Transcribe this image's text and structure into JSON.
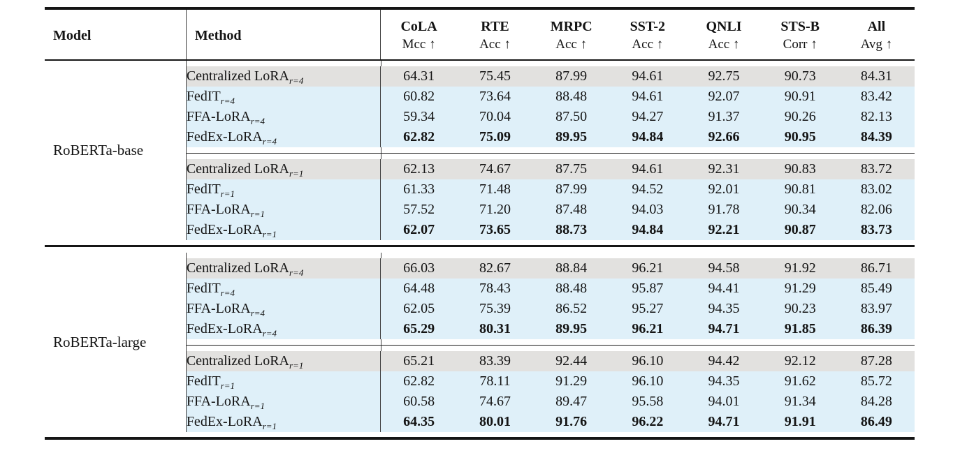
{
  "table": {
    "colors": {
      "gray_row": "#e2e1df",
      "blue_row": "#dff0f9",
      "rule": "#151515"
    },
    "columns": [
      {
        "name": "Model"
      },
      {
        "name": "Method"
      },
      {
        "name": "CoLA",
        "metric": "Mcc ↑"
      },
      {
        "name": "RTE",
        "metric": "Acc ↑"
      },
      {
        "name": "MRPC",
        "metric": "Acc ↑"
      },
      {
        "name": "SST-2",
        "metric": "Acc ↑"
      },
      {
        "name": "QNLI",
        "metric": "Acc ↑"
      },
      {
        "name": "STS-B",
        "metric": "Corr ↑"
      },
      {
        "name": "All",
        "metric": "Avg ↑"
      }
    ],
    "groups": [
      {
        "model": "RoBERTa-base",
        "blocks": [
          {
            "rows": [
              {
                "method": "Centralized LoRA",
                "sub": "r=4",
                "highlight": "gray",
                "bold": false,
                "values": [
                  "64.31",
                  "75.45",
                  "87.99",
                  "94.61",
                  "92.75",
                  "90.73",
                  "84.31"
                ]
              },
              {
                "method": "FedIT",
                "sub": "r=4",
                "highlight": "blue",
                "bold": false,
                "values": [
                  "60.82",
                  "73.64",
                  "88.48",
                  "94.61",
                  "92.07",
                  "90.91",
                  "83.42"
                ]
              },
              {
                "method": "FFA-LoRA",
                "sub": "r=4",
                "highlight": "blue",
                "bold": false,
                "values": [
                  "59.34",
                  "70.04",
                  "87.50",
                  "94.27",
                  "91.37",
                  "90.26",
                  "82.13"
                ]
              },
              {
                "method": "FedEx-LoRA",
                "sub": "r=4",
                "highlight": "blue",
                "bold": true,
                "values": [
                  "62.82",
                  "75.09",
                  "89.95",
                  "94.84",
                  "92.66",
                  "90.95",
                  "84.39"
                ]
              }
            ]
          },
          {
            "rows": [
              {
                "method": "Centralized LoRA",
                "sub": "r=1",
                "highlight": "gray",
                "bold": false,
                "values": [
                  "62.13",
                  "74.67",
                  "87.75",
                  "94.61",
                  "92.31",
                  "90.83",
                  "83.72"
                ]
              },
              {
                "method": "FedIT",
                "sub": "r=1",
                "highlight": "blue",
                "bold": false,
                "values": [
                  "61.33",
                  "71.48",
                  "87.99",
                  "94.52",
                  "92.01",
                  "90.81",
                  "83.02"
                ]
              },
              {
                "method": "FFA-LoRA",
                "sub": "r=1",
                "highlight": "blue",
                "bold": false,
                "values": [
                  "57.52",
                  "71.20",
                  "87.48",
                  "94.03",
                  "91.78",
                  "90.34",
                  "82.06"
                ]
              },
              {
                "method": "FedEx-LoRA",
                "sub": "r=1",
                "highlight": "blue",
                "bold": true,
                "values": [
                  "62.07",
                  "73.65",
                  "88.73",
                  "94.84",
                  "92.21",
                  "90.87",
                  "83.73"
                ]
              }
            ]
          }
        ]
      },
      {
        "model": "RoBERTa-large",
        "blocks": [
          {
            "rows": [
              {
                "method": "Centralized LoRA",
                "sub": "r=4",
                "highlight": "gray",
                "bold": false,
                "values": [
                  "66.03",
                  "82.67",
                  "88.84",
                  "96.21",
                  "94.58",
                  "91.92",
                  "86.71"
                ]
              },
              {
                "method": "FedIT",
                "sub": "r=4",
                "highlight": "blue",
                "bold": false,
                "values": [
                  "64.48",
                  "78.43",
                  "88.48",
                  "95.87",
                  "94.41",
                  "91.29",
                  "85.49"
                ]
              },
              {
                "method": "FFA-LoRA",
                "sub": "r=4",
                "highlight": "blue",
                "bold": false,
                "values": [
                  "62.05",
                  "75.39",
                  "86.52",
                  "95.27",
                  "94.35",
                  "90.23",
                  "83.97"
                ]
              },
              {
                "method": "FedEx-LoRA",
                "sub": "r=4",
                "highlight": "blue",
                "bold": true,
                "values": [
                  "65.29",
                  "80.31",
                  "89.95",
                  "96.21",
                  "94.71",
                  "91.85",
                  "86.39"
                ]
              }
            ]
          },
          {
            "rows": [
              {
                "method": "Centralized LoRA",
                "sub": "r=1",
                "highlight": "gray",
                "bold": false,
                "values": [
                  "65.21",
                  "83.39",
                  "92.44",
                  "96.10",
                  "94.42",
                  "92.12",
                  "87.28"
                ]
              },
              {
                "method": "FedIT",
                "sub": "r=1",
                "highlight": "blue",
                "bold": false,
                "values": [
                  "62.82",
                  "78.11",
                  "91.29",
                  "96.10",
                  "94.35",
                  "91.62",
                  "85.72"
                ]
              },
              {
                "method": "FFA-LoRA",
                "sub": "r=1",
                "highlight": "blue",
                "bold": false,
                "values": [
                  "60.58",
                  "74.67",
                  "89.47",
                  "95.58",
                  "94.01",
                  "91.34",
                  "84.28"
                ]
              },
              {
                "method": "FedEx-LoRA",
                "sub": "r=1",
                "highlight": "blue",
                "bold": true,
                "values": [
                  "64.35",
                  "80.01",
                  "91.76",
                  "96.22",
                  "94.71",
                  "91.91",
                  "86.49"
                ]
              }
            ]
          }
        ]
      }
    ]
  }
}
